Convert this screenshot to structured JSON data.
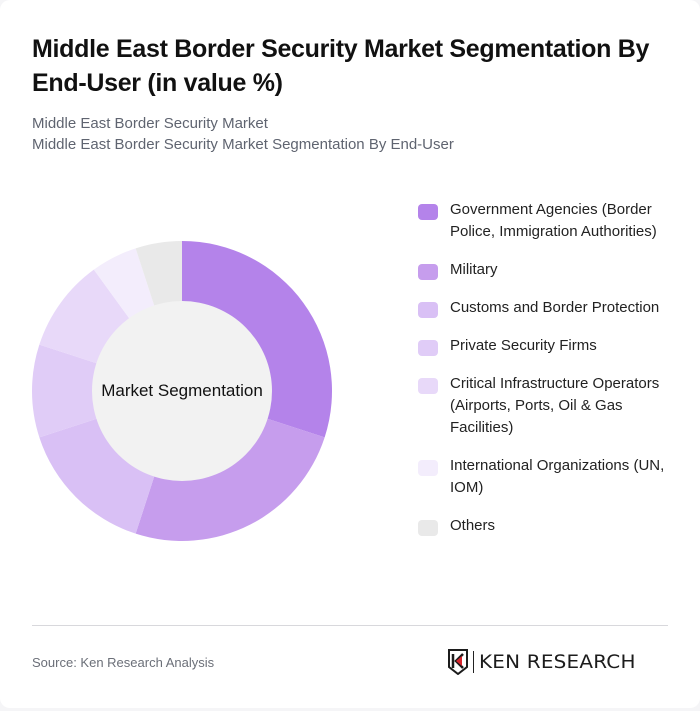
{
  "header": {
    "title": "Middle East Border Security Market Segmentation By End-User (in value %)",
    "subtitle_line1": "Middle East Border Security Market",
    "subtitle_line2": "Middle East Border Security Market Segmentation By End-User"
  },
  "chart": {
    "center_label": "Market Segmentation"
  },
  "legend": {
    "items": [
      {
        "label": "Government Agencies (Border Police, Immigration Authorities)",
        "color": "#B483EA"
      },
      {
        "label": "Military",
        "color": "#C69DED"
      },
      {
        "label": "Customs and Border Protection",
        "color": "#D9C0F5"
      },
      {
        "label": "Private Security Firms",
        "color": "#E0CCF7"
      },
      {
        "label": "Critical Infrastructure Operators (Airports, Ports, Oil & Gas Facilities)",
        "color": "#E8D9F9"
      },
      {
        "label": "International Organizations (UN, IOM)",
        "color": "#F3EDFC"
      },
      {
        "label": "Others",
        "color": "#E9E9E9"
      }
    ]
  },
  "footer": {
    "source": "Source: Ken Research Analysis",
    "logo_text": "KEN RESEARCH"
  },
  "chart_data": {
    "type": "pie",
    "variant": "donut",
    "title": "Middle East Border Security Market Segmentation By End-User (in value %)",
    "subtitle": "Middle East Border Security Market Segmentation By End-User",
    "center_label": "Market Segmentation",
    "categories": [
      "Government Agencies (Border Police, Immigration Authorities)",
      "Military",
      "Customs and Border Protection",
      "Private Security Firms",
      "Critical Infrastructure Operators (Airports, Ports, Oil & Gas Facilities)",
      "International Organizations (UN, IOM)",
      "Others"
    ],
    "values": [
      30,
      25,
      15,
      10,
      10,
      5,
      5
    ],
    "colors": [
      "#B483EA",
      "#C69DED",
      "#D9C0F5",
      "#E0CCF7",
      "#E8D9F9",
      "#F3EDFC",
      "#E9E9E9"
    ],
    "unit": "%",
    "start_angle": "12 o'clock, clockwise",
    "legend_position": "right",
    "source": "Source: Ken Research Analysis"
  }
}
